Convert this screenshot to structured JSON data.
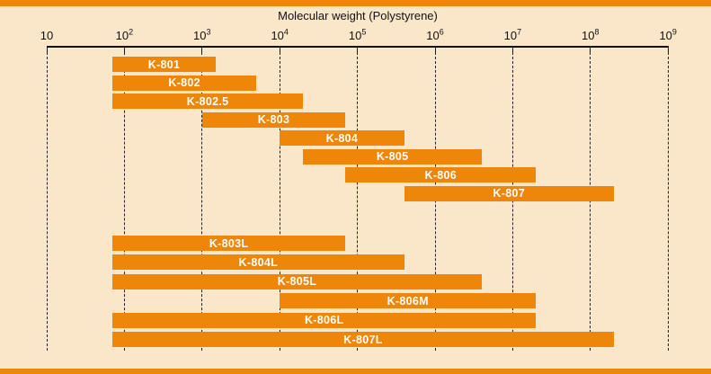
{
  "figure": {
    "title": "Molecular weight (Polystyrene)"
  },
  "colors": {
    "bar_orange": "#EE8609",
    "border_band_orange": "#EE8609",
    "background_peach": "#FAE6C9",
    "axis_text": "#111111",
    "bar_label_text": "#FFFFFF"
  },
  "chart_data": {
    "type": "bar",
    "orientation": "horizontal-range",
    "x_scale": "log10",
    "x_min": 10,
    "x_max": 1000000000,
    "xlabel": "Molecular weight (Polystyrene)",
    "x_tick_labels": [
      "10",
      "10²",
      "10³",
      "10⁴",
      "10⁵",
      "10⁶",
      "10⁷",
      "10⁸",
      "10⁹"
    ],
    "x_tick_exponents": [
      1,
      2,
      3,
      4,
      5,
      6,
      7,
      8,
      9
    ],
    "grid": "vertical-dashed-per-decade",
    "legend": "none",
    "groups": [
      {
        "name": "upper-group",
        "rows": [
          {
            "label": "K-801",
            "mw_min": 70,
            "mw_max": 1500
          },
          {
            "label": "K-802",
            "mw_min": 70,
            "mw_max": 5000
          },
          {
            "label": "K-802.5",
            "mw_min": 70,
            "mw_max": 20000
          },
          {
            "label": "K-803",
            "mw_min": 1000,
            "mw_max": 70000
          },
          {
            "label": "K-804",
            "mw_min": 10000,
            "mw_max": 400000
          },
          {
            "label": "K-805",
            "mw_min": 20000,
            "mw_max": 4000000
          },
          {
            "label": "K-806",
            "mw_min": 70000,
            "mw_max": 20000000
          },
          {
            "label": "K-807",
            "mw_min": 400000,
            "mw_max": 200000000
          }
        ]
      },
      {
        "name": "lower-group",
        "rows": [
          {
            "label": "K-803L",
            "mw_min": 70,
            "mw_max": 70000
          },
          {
            "label": "K-804L",
            "mw_min": 70,
            "mw_max": 400000
          },
          {
            "label": "K-805L",
            "mw_min": 70,
            "mw_max": 4000000
          },
          {
            "label": "K-806M",
            "mw_min": 10000,
            "mw_max": 20000000
          },
          {
            "label": "K-806L",
            "mw_min": 70,
            "mw_max": 20000000
          },
          {
            "label": "K-807L",
            "mw_min": 70,
            "mw_max": 200000000
          }
        ]
      }
    ]
  }
}
